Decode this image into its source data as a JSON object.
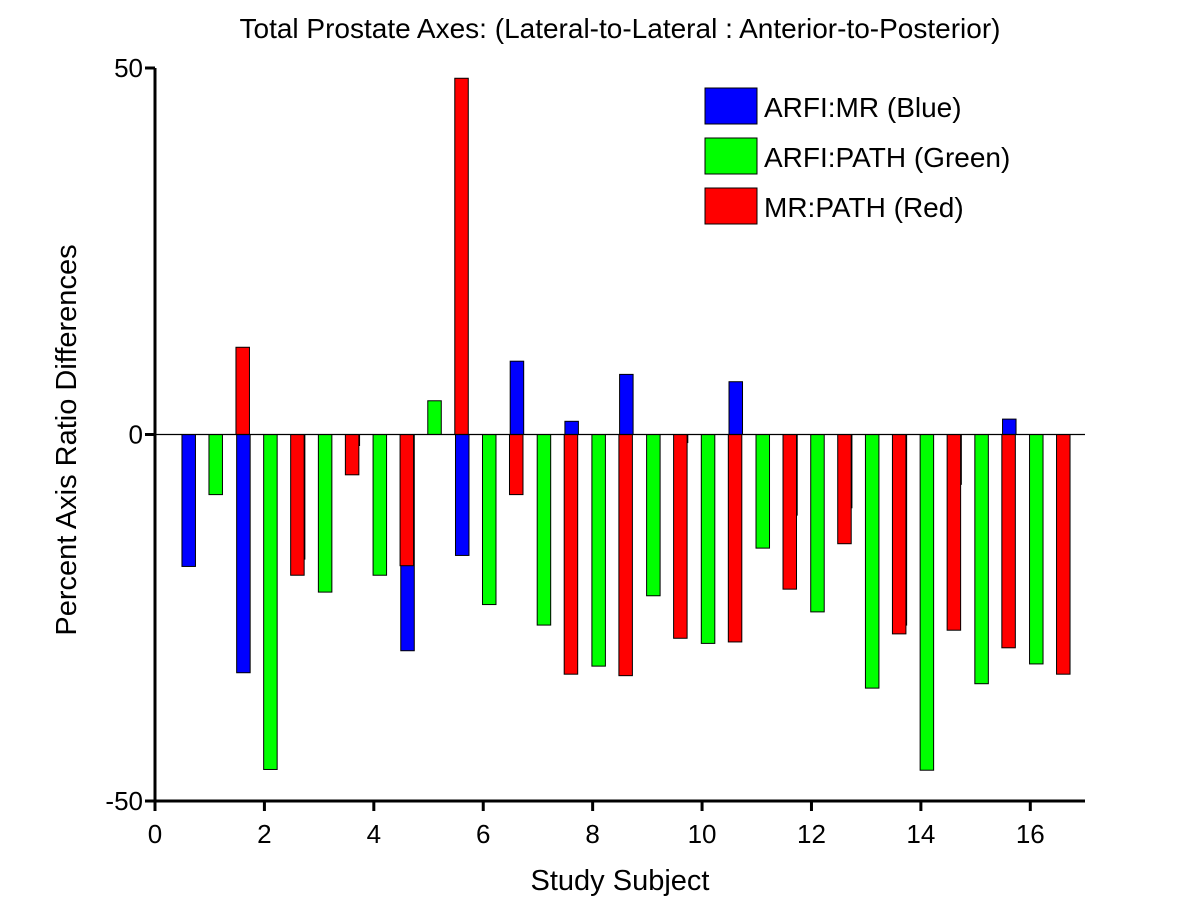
{
  "chart_data": {
    "type": "bar",
    "title": "Total Prostate Axes: (Lateral-to-Lateral : Anterior-to-Posterior)",
    "xlabel": "Study Subject",
    "ylabel": "Percent Axis Ratio Differences",
    "xlim": [
      0,
      17
    ],
    "ylim": [
      -50,
      50
    ],
    "x_ticks": [
      0,
      2,
      4,
      6,
      8,
      10,
      12,
      14,
      16
    ],
    "y_ticks": [
      -50,
      0,
      50
    ],
    "x_tick_labels": [
      "0",
      "2",
      "4",
      "6",
      "8",
      "10",
      "12",
      "14",
      "16"
    ],
    "y_tick_labels": [
      "-50",
      "0",
      "50"
    ],
    "legend_position": "top-right",
    "grid": false,
    "zero_line": true,
    "categories": [
      1,
      2,
      3,
      4,
      5,
      6,
      7,
      8,
      9,
      10,
      11,
      12,
      13,
      14,
      15,
      16
    ],
    "series": [
      {
        "name": "ARFI:MR (Blue)",
        "color": "#0000ff",
        "values": [
          -18,
          -32.5,
          -17,
          -1.5,
          -29.5,
          -16.5,
          10,
          1.8,
          8.2,
          -1.1,
          7.2,
          -11,
          -10,
          -26,
          -6.8,
          2.1
        ]
      },
      {
        "name": "ARFI:PATH (Green)",
        "color": "#00ff00",
        "values": [
          -8.2,
          -45.7,
          -21.5,
          -19.2,
          4.6,
          -23.2,
          -26,
          -31.6,
          -22,
          -28.5,
          -15.5,
          -24.2,
          -34.6,
          -45.8,
          -34,
          -31.3
        ]
      },
      {
        "name": "MR:PATH (Red)",
        "color": "#ff0000",
        "values": [
          11.9,
          -19.2,
          -5.5,
          -17.9,
          48.6,
          -8.2,
          -32.7,
          -32.9,
          -27.8,
          -28.3,
          -21.1,
          -14.9,
          -27.2,
          -26.7,
          -29.1,
          -32.7
        ]
      }
    ]
  }
}
